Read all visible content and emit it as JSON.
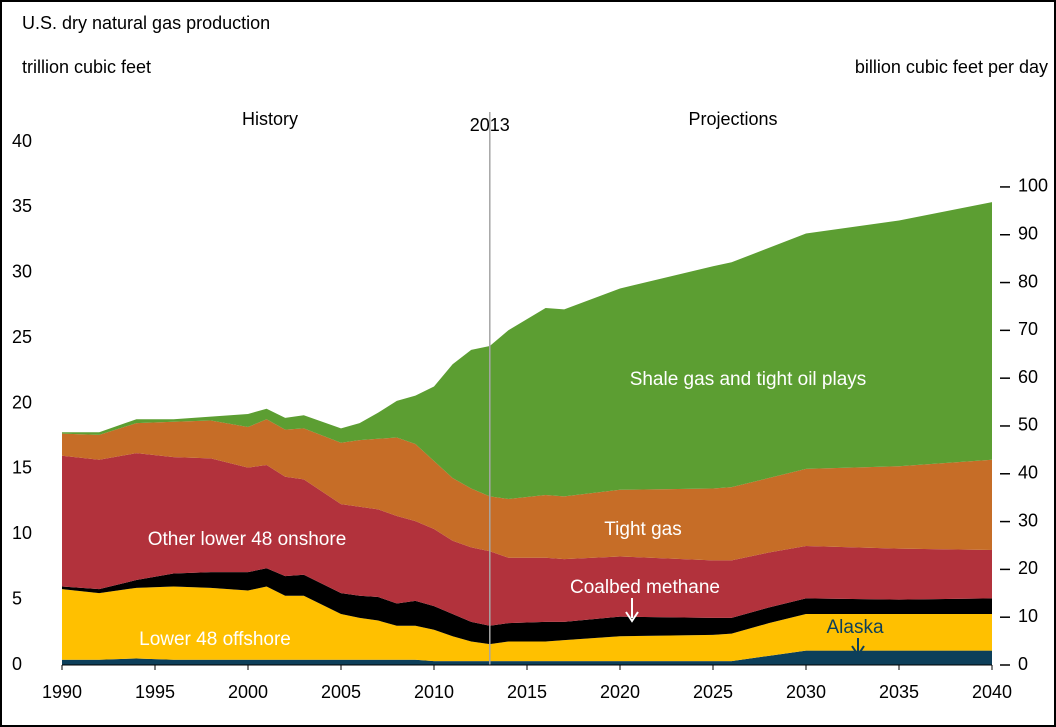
{
  "chart_data": {
    "type": "stacked_area",
    "title": "U.S. dry natural gas production",
    "y_label": "trillion cubic feet",
    "y2_label": "billion cubic feet per day",
    "annotations": [
      "History",
      "Projections"
    ],
    "divider_x": 2013,
    "x": [
      1990,
      1992,
      1994,
      1996,
      1998,
      2000,
      2001,
      2002,
      2003,
      2005,
      2006,
      2007,
      2008,
      2009,
      2010,
      2011,
      2012,
      2013,
      2014,
      2016,
      2017,
      2020,
      2025,
      2026,
      2028,
      2030,
      2035,
      2040
    ],
    "series": [
      {
        "name": "Alaska",
        "color": "#0d3f5a",
        "values": [
          0.4,
          0.4,
          0.5,
          0.4,
          0.4,
          0.4,
          0.4,
          0.4,
          0.4,
          0.4,
          0.4,
          0.4,
          0.4,
          0.4,
          0.3,
          0.3,
          0.3,
          0.3,
          0.3,
          0.3,
          0.3,
          0.3,
          0.3,
          0.3,
          0.7,
          1.1,
          1.1,
          1.1
        ]
      },
      {
        "name": "Lower 48 offshore",
        "color": "#ffc000",
        "values": [
          5.4,
          5.1,
          5.4,
          5.6,
          5.5,
          5.3,
          5.6,
          4.9,
          4.9,
          3.5,
          3.2,
          3.0,
          2.6,
          2.6,
          2.4,
          1.9,
          1.5,
          1.3,
          1.5,
          1.5,
          1.6,
          1.9,
          2.0,
          2.1,
          2.5,
          2.8,
          2.8,
          2.8
        ]
      },
      {
        "name": "Coalbed methane",
        "color": "#000000",
        "values": [
          0.2,
          0.3,
          0.6,
          1.0,
          1.2,
          1.4,
          1.4,
          1.5,
          1.6,
          1.6,
          1.7,
          1.8,
          1.7,
          1.9,
          1.8,
          1.7,
          1.5,
          1.4,
          1.4,
          1.5,
          1.4,
          1.5,
          1.3,
          1.2,
          1.2,
          1.2,
          1.1,
          1.2
        ]
      },
      {
        "name": "Other lower 48 onshore",
        "color": "#b2323c",
        "values": [
          10.0,
          9.9,
          9.7,
          8.9,
          8.7,
          8.0,
          7.9,
          7.6,
          7.3,
          6.8,
          6.8,
          6.7,
          6.7,
          6.1,
          5.9,
          5.6,
          5.7,
          5.7,
          5.0,
          4.9,
          4.8,
          4.6,
          4.4,
          4.4,
          4.2,
          4.0,
          3.9,
          3.7
        ]
      },
      {
        "name": "Tight gas",
        "color": "#c66d27",
        "values": [
          1.7,
          1.9,
          2.3,
          2.7,
          2.9,
          3.1,
          3.5,
          3.6,
          3.9,
          4.7,
          5.1,
          5.4,
          6.0,
          5.9,
          5.2,
          4.8,
          4.5,
          4.2,
          4.5,
          4.8,
          4.8,
          5.1,
          5.5,
          5.6,
          5.7,
          5.9,
          6.3,
          6.9
        ]
      },
      {
        "name": "Shale gas and tight oil plays",
        "color": "#5c9e32",
        "values": [
          0.1,
          0.2,
          0.3,
          0.2,
          0.3,
          1.0,
          0.8,
          0.9,
          1.0,
          1.1,
          1.3,
          2.0,
          2.8,
          3.7,
          5.7,
          8.7,
          10.6,
          11.5,
          12.9,
          14.3,
          14.3,
          15.4,
          17.0,
          17.2,
          17.6,
          18.0,
          18.8,
          19.7
        ]
      }
    ],
    "xlim": [
      1990,
      2040
    ],
    "xticks": [
      1990,
      1995,
      2000,
      2005,
      2010,
      2015,
      2020,
      2025,
      2030,
      2035,
      2040
    ],
    "ylim": [
      0,
      40
    ],
    "yticks": [
      0,
      5,
      10,
      15,
      20,
      25,
      30,
      35,
      40
    ],
    "y2lim": [
      0,
      109.4
    ],
    "y2ticks": [
      0,
      10,
      20,
      30,
      40,
      50,
      60,
      70,
      80,
      90,
      100
    ]
  }
}
